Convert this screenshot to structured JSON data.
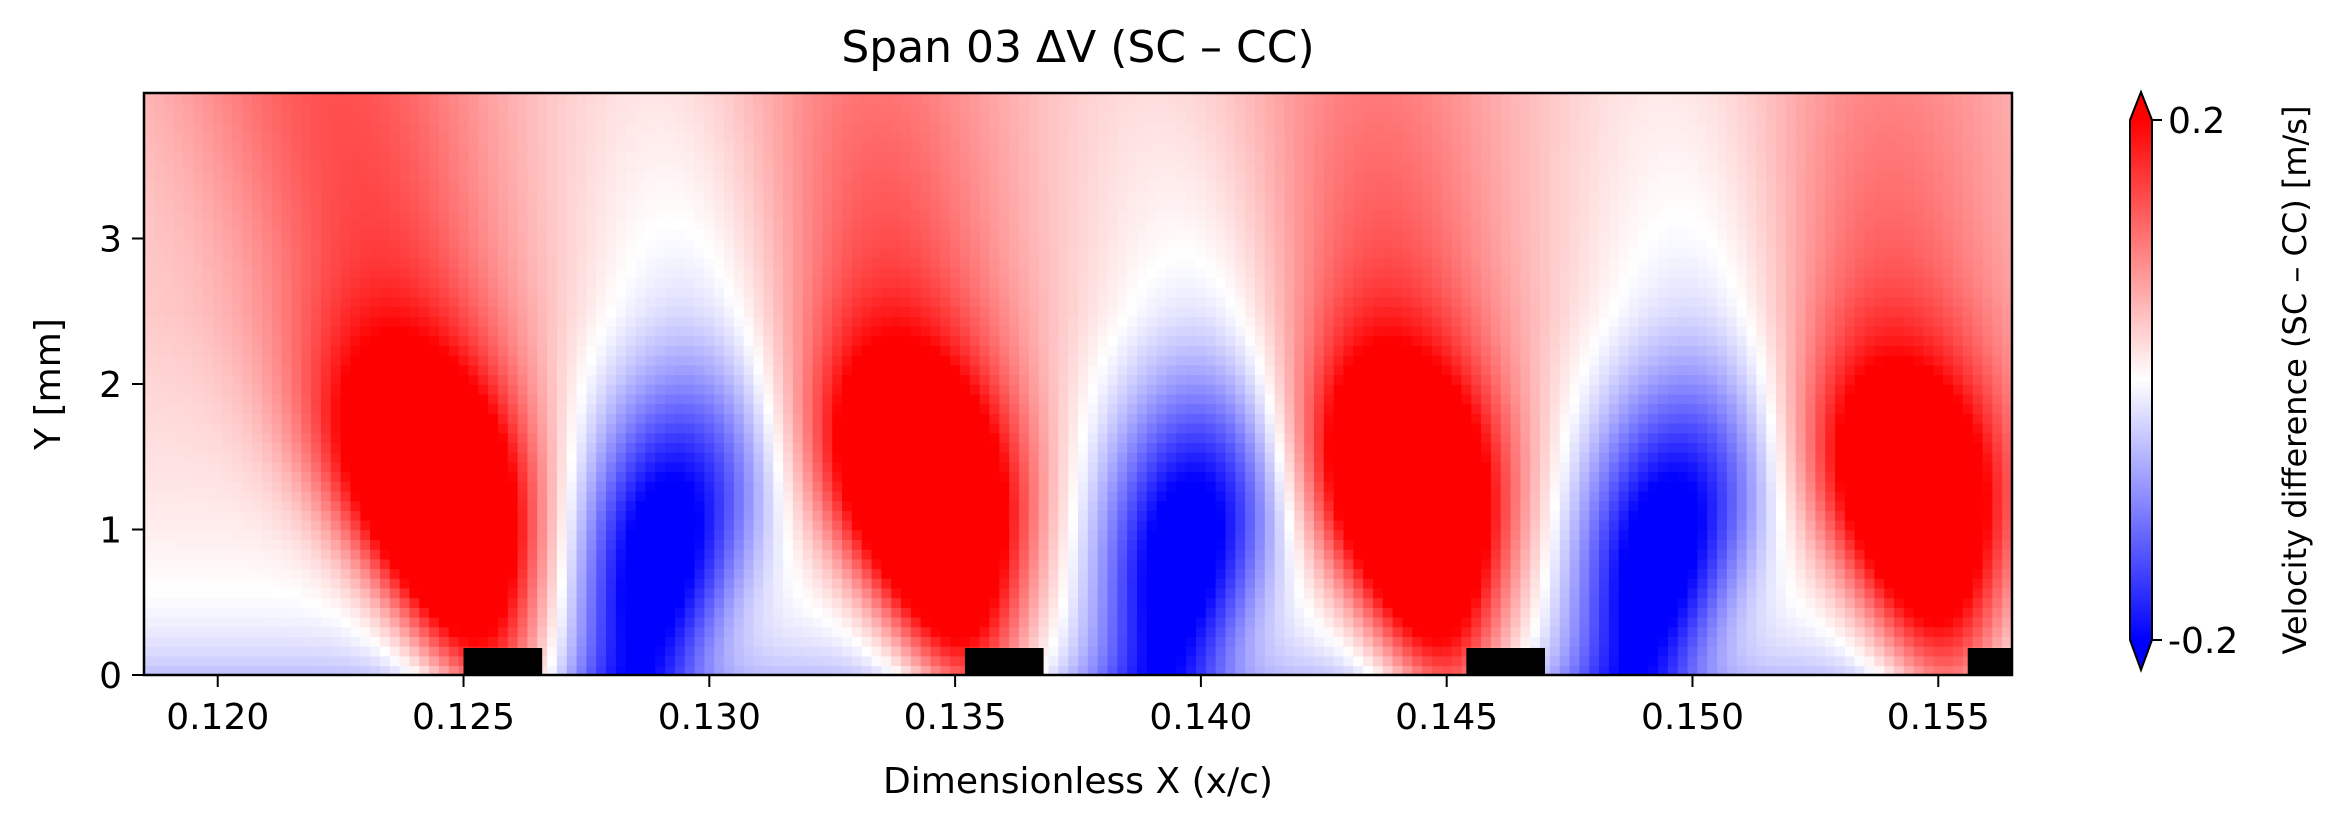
{
  "chart_data": {
    "type": "heatmap",
    "title": "Span 03  ΔV (SC – CC)",
    "xlabel": "Dimensionless X (x/c)",
    "ylabel": "Y [mm]",
    "xlim": [
      0.1185,
      0.1565
    ],
    "ylim": [
      0,
      4.0
    ],
    "x_ticks": [
      {
        "value": 0.12,
        "label": "0.120"
      },
      {
        "value": 0.125,
        "label": "0.125"
      },
      {
        "value": 0.13,
        "label": "0.130"
      },
      {
        "value": 0.135,
        "label": "0.135"
      },
      {
        "value": 0.14,
        "label": "0.140"
      },
      {
        "value": 0.145,
        "label": "0.145"
      },
      {
        "value": 0.15,
        "label": "0.150"
      },
      {
        "value": 0.155,
        "label": "0.155"
      }
    ],
    "y_ticks": [
      {
        "value": 0,
        "label": "0"
      },
      {
        "value": 1,
        "label": "1"
      },
      {
        "value": 2,
        "label": "2"
      },
      {
        "value": 3,
        "label": "3"
      }
    ],
    "colorbar": {
      "label": "Velocity difference (SC – CC) [m/s]",
      "vmin": -0.2,
      "vmax": 0.2,
      "ticks": [
        {
          "value": 0.2,
          "label": "0.2"
        },
        {
          "value": -0.2,
          "label": "-0.2"
        }
      ],
      "colormap": "bwr",
      "extend": "both",
      "low_color": "#0000ff",
      "mid_color": "#ffffff",
      "high_color": "#ff0000"
    },
    "bands": [
      {
        "sign": 1,
        "x_base": 0.1255,
        "x_top": 0.1225,
        "amp": 0.28
      },
      {
        "sign": -1,
        "x_base": 0.1285,
        "x_top": 0.1305,
        "amp": 0.22
      },
      {
        "sign": 1,
        "x_base": 0.1353,
        "x_top": 0.1327,
        "amp": 0.28
      },
      {
        "sign": -1,
        "x_base": 0.1392,
        "x_top": 0.141,
        "amp": 0.22
      },
      {
        "sign": 1,
        "x_base": 0.145,
        "x_top": 0.1428,
        "amp": 0.28
      },
      {
        "sign": -1,
        "x_base": 0.1488,
        "x_top": 0.151,
        "amp": 0.22
      },
      {
        "sign": 1,
        "x_base": 0.1552,
        "x_top": 0.1532,
        "amp": 0.24
      }
    ],
    "wall_elements": [
      {
        "x_start": 0.125,
        "x_end": 0.1266
      },
      {
        "x_start": 0.1352,
        "x_end": 0.1368
      },
      {
        "x_start": 0.1454,
        "x_end": 0.147
      },
      {
        "x_start": 0.1556,
        "x_end": 0.1565
      }
    ],
    "wall_color": "#000000"
  }
}
